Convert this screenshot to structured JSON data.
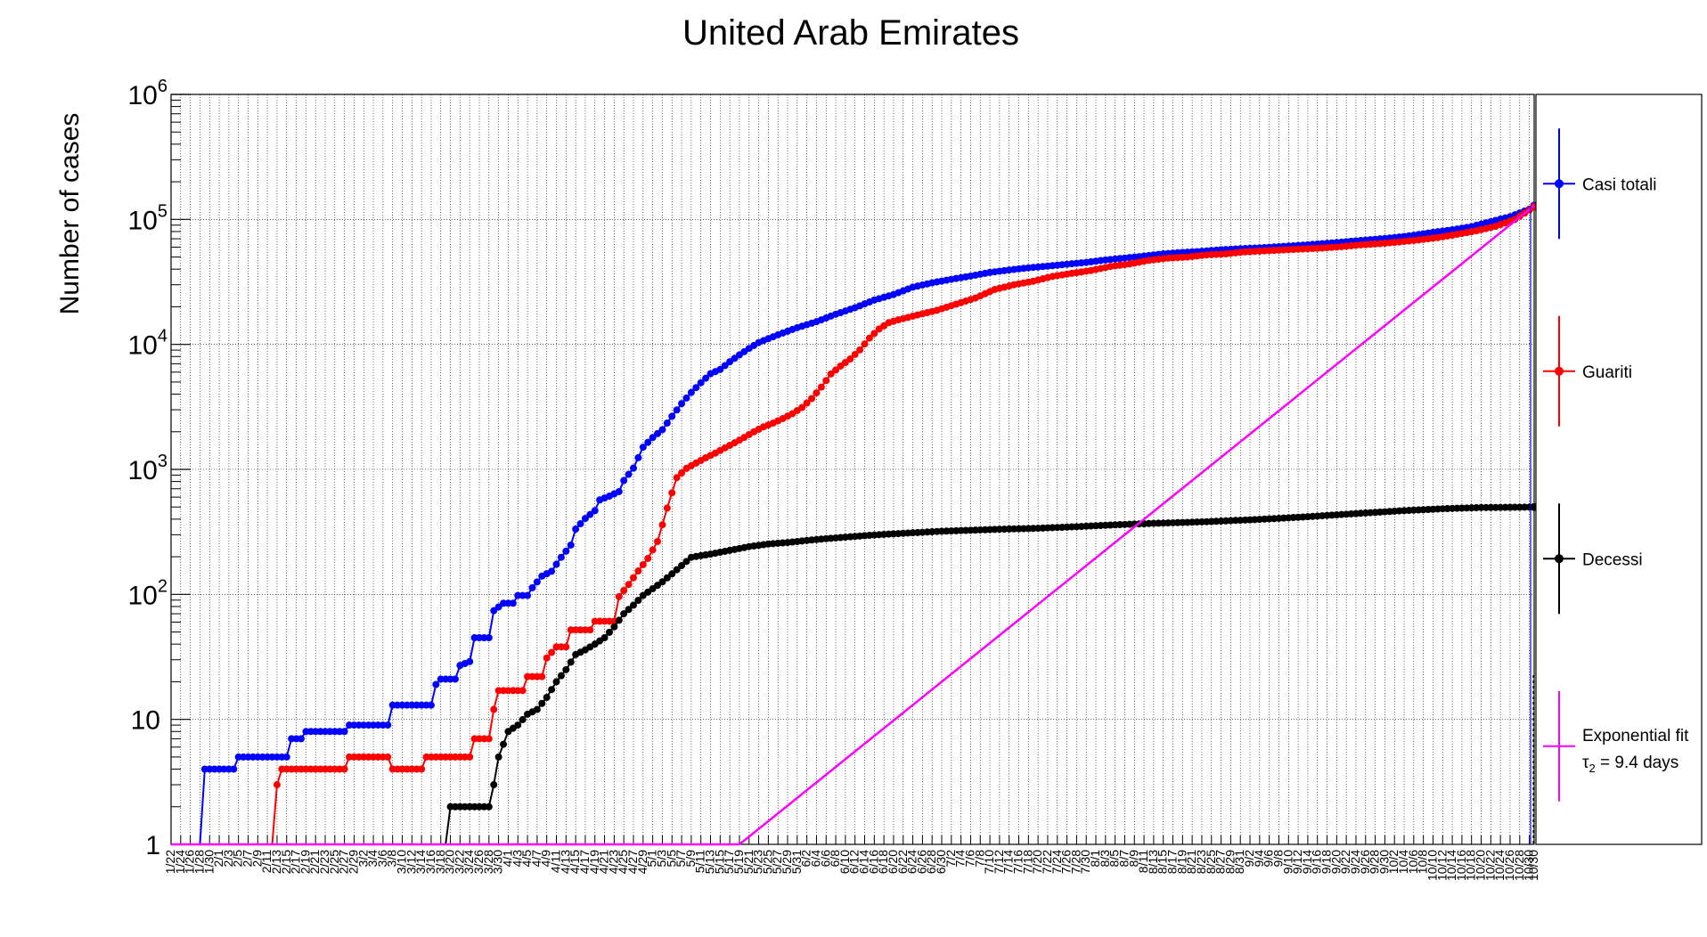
{
  "chart_data": {
    "type": "line",
    "title": "United Arab Emirates",
    "ylabel": "Number of cases",
    "xlabel": "",
    "y_scale": "log",
    "ylim": [
      1,
      1000000
    ],
    "y_ticks": [
      {
        "value": 1,
        "base": "1",
        "exp": ""
      },
      {
        "value": 10,
        "base": "10",
        "exp": ""
      },
      {
        "value": 100,
        "base": "10",
        "exp": "2"
      },
      {
        "value": 1000,
        "base": "10",
        "exp": "3"
      },
      {
        "value": 10000,
        "base": "10",
        "exp": "4"
      },
      {
        "value": 100000,
        "base": "10",
        "exp": "5"
      },
      {
        "value": 1000000,
        "base": "10",
        "exp": "6"
      }
    ],
    "x_start": "1/22",
    "x_end": "10/30",
    "x_days": 283,
    "grid": true,
    "legend_position": "right",
    "series": [
      {
        "name": "Casi totali",
        "color": "#0000ff",
        "points": [
          [
            0,
            1
          ],
          [
            6,
            1
          ],
          [
            7,
            4
          ],
          [
            13,
            4
          ],
          [
            14,
            5
          ],
          [
            24,
            5
          ],
          [
            25,
            7
          ],
          [
            27,
            7
          ],
          [
            28,
            8
          ],
          [
            36,
            8
          ],
          [
            37,
            9
          ],
          [
            45,
            9
          ],
          [
            46,
            13
          ],
          [
            54,
            13
          ],
          [
            55,
            19
          ],
          [
            56,
            21
          ],
          [
            59,
            21
          ],
          [
            60,
            27
          ],
          [
            62,
            29
          ],
          [
            63,
            45
          ],
          [
            66,
            45
          ],
          [
            67,
            74
          ],
          [
            69,
            85
          ],
          [
            71,
            85
          ],
          [
            72,
            98
          ],
          [
            74,
            98
          ],
          [
            75,
            113
          ],
          [
            77,
            140
          ],
          [
            79,
            153
          ],
          [
            81,
            198
          ],
          [
            83,
            248
          ],
          [
            84,
            333
          ],
          [
            86,
            405
          ],
          [
            88,
            468
          ],
          [
            89,
            570
          ],
          [
            91,
            611
          ],
          [
            93,
            664
          ],
          [
            94,
            814
          ],
          [
            96,
            1024
          ],
          [
            98,
            1505
          ],
          [
            100,
            1799
          ],
          [
            102,
            2076
          ],
          [
            104,
            2659
          ],
          [
            106,
            3360
          ],
          [
            108,
            4123
          ],
          [
            110,
            4933
          ],
          [
            112,
            5825
          ],
          [
            114,
            6302
          ],
          [
            116,
            7265
          ],
          [
            118,
            8238
          ],
          [
            120,
            9281
          ],
          [
            122,
            10350
          ],
          [
            126,
            11929
          ],
          [
            130,
            13599
          ],
          [
            134,
            15192
          ],
          [
            138,
            17417
          ],
          [
            142,
            19661
          ],
          [
            146,
            22627
          ],
          [
            150,
            25063
          ],
          [
            154,
            28704
          ],
          [
            158,
            31086
          ],
          [
            162,
            33170
          ],
          [
            166,
            35192
          ],
          [
            170,
            37642
          ],
          [
            174,
            39376
          ],
          [
            178,
            40986
          ],
          [
            182,
            42294
          ],
          [
            186,
            43752
          ],
          [
            190,
            45303
          ],
          [
            194,
            47360
          ],
          [
            198,
            49069
          ],
          [
            202,
            50857
          ],
          [
            206,
            53045
          ],
          [
            210,
            54453
          ],
          [
            214,
            55573
          ],
          [
            218,
            57193
          ],
          [
            222,
            58249
          ],
          [
            226,
            59177
          ],
          [
            230,
            60506
          ],
          [
            234,
            61845
          ],
          [
            238,
            63489
          ],
          [
            242,
            65341
          ],
          [
            246,
            67282
          ],
          [
            250,
            69328
          ],
          [
            254,
            71540
          ],
          [
            258,
            74661
          ],
          [
            262,
            78849
          ],
          [
            266,
            82568
          ],
          [
            270,
            87530
          ],
          [
            274,
            95975
          ],
          [
            278,
            105133
          ],
          [
            282,
            120710
          ],
          [
            283,
            129000
          ]
        ]
      },
      {
        "name": "Guariti",
        "color": "#ff0000",
        "points": [
          [
            0,
            1
          ],
          [
            21,
            1
          ],
          [
            22,
            3
          ],
          [
            23,
            4
          ],
          [
            36,
            4
          ],
          [
            37,
            5
          ],
          [
            45,
            5
          ],
          [
            46,
            4
          ],
          [
            52,
            4
          ],
          [
            53,
            5
          ],
          [
            62,
            5
          ],
          [
            63,
            7
          ],
          [
            66,
            7
          ],
          [
            67,
            12
          ],
          [
            68,
            17
          ],
          [
            73,
            17
          ],
          [
            74,
            22
          ],
          [
            77,
            22
          ],
          [
            78,
            31
          ],
          [
            80,
            38
          ],
          [
            82,
            38
          ],
          [
            83,
            52
          ],
          [
            87,
            52
          ],
          [
            88,
            61
          ],
          [
            92,
            61
          ],
          [
            93,
            96
          ],
          [
            95,
            120
          ],
          [
            97,
            154
          ],
          [
            99,
            194
          ],
          [
            101,
            265
          ],
          [
            103,
            490
          ],
          [
            105,
            860
          ],
          [
            107,
            1018
          ],
          [
            109,
            1124
          ],
          [
            111,
            1238
          ],
          [
            113,
            1350
          ],
          [
            115,
            1487
          ],
          [
            117,
            1631
          ],
          [
            119,
            1800
          ],
          [
            121,
            2000
          ],
          [
            123,
            2190
          ],
          [
            125,
            2345
          ],
          [
            127,
            2550
          ],
          [
            129,
            2790
          ],
          [
            131,
            3130
          ],
          [
            133,
            3685
          ],
          [
            135,
            4548
          ],
          [
            137,
            5801
          ],
          [
            139,
            6715
          ],
          [
            141,
            7643
          ],
          [
            143,
            9037
          ],
          [
            145,
            11236
          ],
          [
            147,
            13282
          ],
          [
            149,
            14921
          ],
          [
            151,
            15720
          ],
          [
            155,
            17211
          ],
          [
            159,
            18727
          ],
          [
            163,
            21000
          ],
          [
            167,
            23500
          ],
          [
            171,
            27500
          ],
          [
            175,
            30000
          ],
          [
            179,
            32000
          ],
          [
            183,
            35000
          ],
          [
            187,
            37000
          ],
          [
            191,
            39000
          ],
          [
            195,
            42000
          ],
          [
            199,
            44000
          ],
          [
            203,
            47000
          ],
          [
            207,
            49000
          ],
          [
            211,
            50000
          ],
          [
            215,
            52000
          ],
          [
            219,
            53000
          ],
          [
            223,
            55000
          ],
          [
            227,
            56000
          ],
          [
            231,
            57000
          ],
          [
            235,
            58000
          ],
          [
            239,
            59000
          ],
          [
            243,
            60500
          ],
          [
            247,
            62500
          ],
          [
            251,
            64000
          ],
          [
            255,
            66000
          ],
          [
            259,
            68500
          ],
          [
            263,
            71500
          ],
          [
            267,
            76000
          ],
          [
            271,
            81000
          ],
          [
            275,
            88000
          ],
          [
            279,
            100000
          ],
          [
            283,
            126000
          ]
        ]
      },
      {
        "name": "Decessi",
        "color": "#000000",
        "points": [
          [
            0,
            1
          ],
          [
            57,
            1
          ],
          [
            58,
            2
          ],
          [
            66,
            2
          ],
          [
            67,
            3
          ],
          [
            68,
            5
          ],
          [
            70,
            8
          ],
          [
            72,
            9
          ],
          [
            74,
            11
          ],
          [
            76,
            12
          ],
          [
            78,
            15
          ],
          [
            80,
            20
          ],
          [
            82,
            25
          ],
          [
            84,
            33
          ],
          [
            86,
            36
          ],
          [
            88,
            40
          ],
          [
            90,
            45
          ],
          [
            92,
            55
          ],
          [
            94,
            70
          ],
          [
            96,
            82
          ],
          [
            98,
            98
          ],
          [
            100,
            111
          ],
          [
            102,
            126
          ],
          [
            104,
            146
          ],
          [
            106,
            170
          ],
          [
            108,
            198
          ],
          [
            112,
            210
          ],
          [
            116,
            225
          ],
          [
            120,
            241
          ],
          [
            124,
            253
          ],
          [
            128,
            260
          ],
          [
            132,
            270
          ],
          [
            136,
            279
          ],
          [
            140,
            287
          ],
          [
            144,
            295
          ],
          [
            148,
            302
          ],
          [
            152,
            308
          ],
          [
            156,
            314
          ],
          [
            160,
            320
          ],
          [
            164,
            324
          ],
          [
            168,
            328
          ],
          [
            172,
            332
          ],
          [
            176,
            335
          ],
          [
            180,
            338
          ],
          [
            184,
            343
          ],
          [
            188,
            348
          ],
          [
            192,
            354
          ],
          [
            196,
            360
          ],
          [
            200,
            365
          ],
          [
            204,
            370
          ],
          [
            208,
            374
          ],
          [
            212,
            378
          ],
          [
            216,
            383
          ],
          [
            220,
            389
          ],
          [
            224,
            395
          ],
          [
            228,
            402
          ],
          [
            232,
            410
          ],
          [
            236,
            418
          ],
          [
            240,
            428
          ],
          [
            244,
            438
          ],
          [
            248,
            448
          ],
          [
            252,
            458
          ],
          [
            256,
            468
          ],
          [
            260,
            476
          ],
          [
            264,
            484
          ],
          [
            268,
            490
          ],
          [
            272,
            495
          ],
          [
            276,
            496
          ],
          [
            280,
            498
          ],
          [
            283,
            500
          ]
        ]
      },
      {
        "name": "Exponential fit",
        "name_line2": "τ",
        "name_line2_sub": "2",
        "name_line2_rest": " = 9.4 days",
        "color": "#ff00ff",
        "fit_start": [
          118,
          1
        ],
        "fit_end": [
          283,
          129000
        ],
        "tau2_days": 9.4
      }
    ]
  }
}
